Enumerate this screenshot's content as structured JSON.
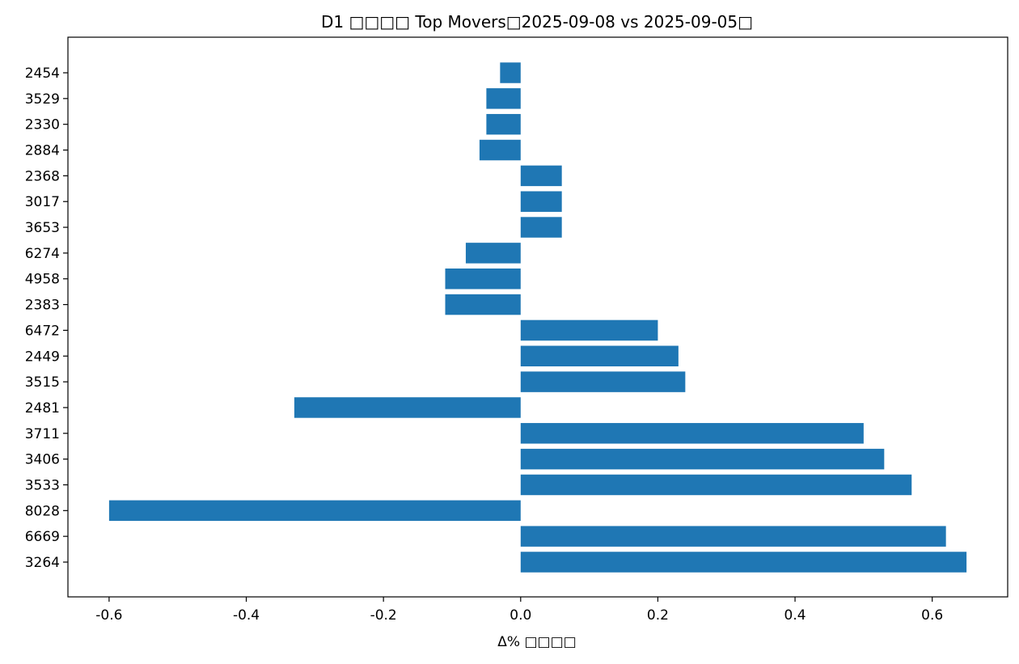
{
  "chart_data": {
    "type": "bar",
    "orientation": "horizontal",
    "title": "D1 □□□□ Top Movers□2025-09-08 vs 2025-09-05□",
    "xlabel": "Δ% □□□□",
    "ylabel": "",
    "categories": [
      "3264",
      "6669",
      "8028",
      "3533",
      "3406",
      "3711",
      "2481",
      "3515",
      "2449",
      "6472",
      "2383",
      "4958",
      "6274",
      "3653",
      "3017",
      "2368",
      "2884",
      "2330",
      "3529",
      "2454"
    ],
    "values": [
      0.65,
      0.62,
      -0.6,
      0.57,
      0.53,
      0.5,
      -0.33,
      0.24,
      0.23,
      0.2,
      -0.11,
      -0.11,
      -0.08,
      0.06,
      0.06,
      0.06,
      -0.06,
      -0.05,
      -0.05,
      -0.03
    ],
    "xlim": [
      -0.66,
      0.71
    ],
    "xticks": [
      -0.6,
      -0.4,
      -0.2,
      0.0,
      0.2,
      0.4,
      0.6
    ],
    "xtick_labels": [
      "-0.6",
      "-0.4",
      "-0.2",
      "0.0",
      "0.2",
      "0.4",
      "0.6"
    ],
    "grid": false,
    "legend": "none",
    "bar_color": "#1f77b4"
  }
}
